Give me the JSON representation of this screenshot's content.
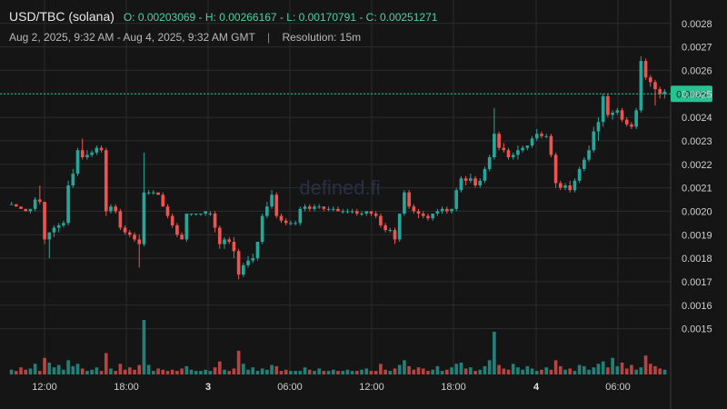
{
  "header": {
    "pair": "USD/TBC (solana)",
    "ohlc": "O: 0.00203069 - H: 0.00266167 - L: 0.00170791 - C: 0.00251271",
    "range": "Aug 2, 2025, 9:32 AM - Aug 4, 2025, 9:32 AM GMT",
    "separator": "|",
    "resolution": "Resolution: 15m"
  },
  "watermark": "defined.fi",
  "colors": {
    "background": "#151515",
    "grid": "#2c2c2c",
    "up": "#26a69a",
    "down": "#ef5350",
    "last_price_bg": "#26c28f"
  },
  "chart_data": {
    "type": "candlestick",
    "ylim": [
      0.00139,
      0.00283
    ],
    "y_ticks": [
      "0.0028",
      "0.0027",
      "0.0026",
      "0.0025",
      "0.0024",
      "0.0023",
      "0.0022",
      "0.0021",
      "0.0020",
      "0.0019",
      "0.0018",
      "0.0017",
      "0.0016",
      "0.0015"
    ],
    "x_ticks": [
      {
        "label": "12:00",
        "bold": false
      },
      {
        "label": "18:00",
        "bold": false
      },
      {
        "label": "3",
        "bold": true
      },
      {
        "label": "06:00",
        "bold": false
      },
      {
        "label": "12:00",
        "bold": false
      },
      {
        "label": "18:00",
        "bold": false
      },
      {
        "label": "4",
        "bold": true
      },
      {
        "label": "06:00",
        "bold": false
      }
    ],
    "last_price": "0.0025",
    "candles": [
      [
        0.00203,
        0.00204,
        0.00203,
        0.00203
      ],
      [
        0.00203,
        0.00203,
        0.00202,
        0.00202
      ],
      [
        0.00202,
        0.00202,
        0.00201,
        0.00201
      ],
      [
        0.00201,
        0.00201,
        0.002,
        0.002
      ],
      [
        0.002,
        0.00201,
        0.00199,
        0.00201
      ],
      [
        0.00201,
        0.00206,
        0.002,
        0.00205
      ],
      [
        0.00205,
        0.00211,
        0.00203,
        0.00204
      ],
      [
        0.00204,
        0.00204,
        0.00186,
        0.00188
      ],
      [
        0.00188,
        0.0019,
        0.0018,
        0.00191
      ],
      [
        0.00191,
        0.00194,
        0.00189,
        0.00193
      ],
      [
        0.00193,
        0.00195,
        0.00191,
        0.00194
      ],
      [
        0.00194,
        0.00196,
        0.00193,
        0.00195
      ],
      [
        0.00195,
        0.00213,
        0.00194,
        0.00211
      ],
      [
        0.00211,
        0.00218,
        0.0021,
        0.00216
      ],
      [
        0.00216,
        0.00227,
        0.00215,
        0.00226
      ],
      [
        0.00226,
        0.00231,
        0.00222,
        0.00223
      ],
      [
        0.00223,
        0.00226,
        0.00222,
        0.00224
      ],
      [
        0.00224,
        0.00226,
        0.00223,
        0.00225
      ],
      [
        0.00225,
        0.00228,
        0.00224,
        0.00227
      ],
      [
        0.00227,
        0.00228,
        0.00225,
        0.00226
      ],
      [
        0.00226,
        0.00227,
        0.00198,
        0.002
      ],
      [
        0.002,
        0.00203,
        0.00199,
        0.00202
      ],
      [
        0.00202,
        0.00203,
        0.00199,
        0.002
      ],
      [
        0.002,
        0.00201,
        0.00192,
        0.00193
      ],
      [
        0.00193,
        0.00194,
        0.0019,
        0.00191
      ],
      [
        0.00191,
        0.00192,
        0.00189,
        0.0019
      ],
      [
        0.0019,
        0.00191,
        0.00187,
        0.00188
      ],
      [
        0.00188,
        0.0019,
        0.00176,
        0.00186
      ],
      [
        0.00186,
        0.00225,
        0.00185,
        0.00208
      ],
      [
        0.00208,
        0.00209,
        0.00207,
        0.00208
      ],
      [
        0.00208,
        0.00209,
        0.00207,
        0.00208
      ],
      [
        0.00208,
        0.00208,
        0.00207,
        0.00207
      ],
      [
        0.00207,
        0.00208,
        0.00202,
        0.00202
      ],
      [
        0.00202,
        0.00203,
        0.00197,
        0.00198
      ],
      [
        0.00198,
        0.00199,
        0.00193,
        0.00194
      ],
      [
        0.00194,
        0.00195,
        0.00189,
        0.0019
      ],
      [
        0.0019,
        0.00191,
        0.00188,
        0.00188
      ],
      [
        0.00188,
        0.00199,
        0.00187,
        0.00199
      ],
      [
        0.00199,
        0.00199,
        0.00198,
        0.00199
      ],
      [
        0.00199,
        0.00199,
        0.00198,
        0.00199
      ],
      [
        0.00199,
        0.00199,
        0.00198,
        0.00199
      ],
      [
        0.00199,
        0.002,
        0.00198,
        0.002
      ],
      [
        0.00199,
        0.002,
        0.00198,
        0.00199
      ],
      [
        0.00199,
        0.002,
        0.00191,
        0.00193
      ],
      [
        0.00193,
        0.00194,
        0.00184,
        0.00186
      ],
      [
        0.00186,
        0.00189,
        0.00184,
        0.00188
      ],
      [
        0.00188,
        0.00189,
        0.00186,
        0.00187
      ],
      [
        0.00187,
        0.00189,
        0.0018,
        0.00183
      ],
      [
        0.00183,
        0.00184,
        0.00171,
        0.00173
      ],
      [
        0.00173,
        0.00178,
        0.00172,
        0.00177
      ],
      [
        0.00177,
        0.00181,
        0.00176,
        0.00179
      ],
      [
        0.00179,
        0.00182,
        0.00178,
        0.0018
      ],
      [
        0.0018,
        0.00187,
        0.00179,
        0.00187
      ],
      [
        0.00187,
        0.00199,
        0.00186,
        0.00198
      ],
      [
        0.00198,
        0.00204,
        0.00197,
        0.00202
      ],
      [
        0.00202,
        0.00209,
        0.00201,
        0.00207
      ],
      [
        0.00207,
        0.00208,
        0.00197,
        0.00198
      ],
      [
        0.00198,
        0.00199,
        0.00195,
        0.00196
      ],
      [
        0.00196,
        0.00197,
        0.00194,
        0.00195
      ],
      [
        0.00195,
        0.00196,
        0.00194,
        0.00195
      ],
      [
        0.00195,
        0.00196,
        0.00194,
        0.00195
      ],
      [
        0.00195,
        0.00202,
        0.00194,
        0.00201
      ],
      [
        0.00201,
        0.00203,
        0.002,
        0.00202
      ],
      [
        0.00202,
        0.00203,
        0.002,
        0.00201
      ],
      [
        0.00201,
        0.00203,
        0.002,
        0.00202
      ],
      [
        0.00202,
        0.00203,
        0.00201,
        0.00202
      ],
      [
        0.00202,
        0.00202,
        0.002,
        0.00201
      ],
      [
        0.00201,
        0.00202,
        0.002,
        0.00201
      ],
      [
        0.00201,
        0.00202,
        0.002,
        0.00201
      ],
      [
        0.00201,
        0.00202,
        0.002,
        0.002
      ],
      [
        0.002,
        0.00201,
        0.00199,
        0.002
      ],
      [
        0.002,
        0.00201,
        0.00199,
        0.002
      ],
      [
        0.002,
        0.00201,
        0.00199,
        0.002
      ],
      [
        0.002,
        0.00201,
        0.00198,
        0.00199
      ],
      [
        0.00199,
        0.002,
        0.00198,
        0.00199
      ],
      [
        0.00199,
        0.002,
        0.00198,
        0.002
      ],
      [
        0.002,
        0.002,
        0.00198,
        0.00199
      ],
      [
        0.00199,
        0.002,
        0.00197,
        0.00198
      ],
      [
        0.00198,
        0.00199,
        0.00193,
        0.00194
      ],
      [
        0.00194,
        0.00195,
        0.00191,
        0.00192
      ],
      [
        0.00192,
        0.00193,
        0.00191,
        0.00192
      ],
      [
        0.00192,
        0.00193,
        0.00186,
        0.00188
      ],
      [
        0.00188,
        0.00199,
        0.00187,
        0.00199
      ],
      [
        0.00199,
        0.00209,
        0.00198,
        0.00208
      ],
      [
        0.00208,
        0.00209,
        0.00201,
        0.00202
      ],
      [
        0.00202,
        0.00203,
        0.00199,
        0.002
      ],
      [
        0.002,
        0.00201,
        0.00197,
        0.00199
      ],
      [
        0.00199,
        0.002,
        0.00197,
        0.00198
      ],
      [
        0.00198,
        0.00199,
        0.00196,
        0.00197
      ],
      [
        0.00197,
        0.00198,
        0.00196,
        0.00199
      ],
      [
        0.00199,
        0.00201,
        0.00198,
        0.002
      ],
      [
        0.002,
        0.00202,
        0.00199,
        0.00201
      ],
      [
        0.00201,
        0.00202,
        0.00199,
        0.002
      ],
      [
        0.002,
        0.00201,
        0.00199,
        0.00201
      ],
      [
        0.00201,
        0.0021,
        0.002,
        0.00209
      ],
      [
        0.00209,
        0.00215,
        0.00208,
        0.00214
      ],
      [
        0.00214,
        0.00215,
        0.00211,
        0.00213
      ],
      [
        0.00213,
        0.00216,
        0.00212,
        0.00214
      ],
      [
        0.00214,
        0.00215,
        0.0021,
        0.00211
      ],
      [
        0.00211,
        0.00214,
        0.0021,
        0.00213
      ],
      [
        0.00213,
        0.00219,
        0.00212,
        0.00218
      ],
      [
        0.00218,
        0.00224,
        0.00217,
        0.00223
      ],
      [
        0.00223,
        0.00244,
        0.00222,
        0.00233
      ],
      [
        0.00233,
        0.00234,
        0.00226,
        0.00227
      ],
      [
        0.00227,
        0.00229,
        0.00225,
        0.00226
      ],
      [
        0.00226,
        0.00227,
        0.00222,
        0.00223
      ],
      [
        0.00223,
        0.00225,
        0.00222,
        0.00224
      ],
      [
        0.00224,
        0.00228,
        0.00222,
        0.00226
      ],
      [
        0.00226,
        0.00228,
        0.00225,
        0.00227
      ],
      [
        0.00227,
        0.00228,
        0.00226,
        0.00228
      ],
      [
        0.00228,
        0.00232,
        0.00227,
        0.00231
      ],
      [
        0.00231,
        0.00235,
        0.0023,
        0.00233
      ],
      [
        0.00233,
        0.00234,
        0.00231,
        0.00232
      ],
      [
        0.00232,
        0.00233,
        0.00231,
        0.00232
      ],
      [
        0.00232,
        0.00233,
        0.00223,
        0.00224
      ],
      [
        0.00224,
        0.00225,
        0.0021,
        0.00212
      ],
      [
        0.00212,
        0.00213,
        0.00209,
        0.0021
      ],
      [
        0.0021,
        0.00212,
        0.00209,
        0.00211
      ],
      [
        0.00211,
        0.00213,
        0.00208,
        0.00209
      ],
      [
        0.00209,
        0.00214,
        0.00208,
        0.00213
      ],
      [
        0.00213,
        0.00219,
        0.00212,
        0.00218
      ],
      [
        0.00218,
        0.00223,
        0.00217,
        0.00222
      ],
      [
        0.00222,
        0.00228,
        0.00221,
        0.00226
      ],
      [
        0.00226,
        0.00236,
        0.00225,
        0.00234
      ],
      [
        0.00234,
        0.0024,
        0.0023,
        0.00238
      ],
      [
        0.00238,
        0.0025,
        0.00236,
        0.00249
      ],
      [
        0.00249,
        0.0025,
        0.0024,
        0.00241
      ],
      [
        0.00241,
        0.00243,
        0.00239,
        0.00242
      ],
      [
        0.00242,
        0.00244,
        0.00241,
        0.00243
      ],
      [
        0.00243,
        0.00244,
        0.00238,
        0.00239
      ],
      [
        0.00239,
        0.0024,
        0.00236,
        0.00237
      ],
      [
        0.00237,
        0.00238,
        0.00235,
        0.00236
      ],
      [
        0.00236,
        0.00244,
        0.00235,
        0.00243
      ],
      [
        0.00243,
        0.00266,
        0.00242,
        0.00264
      ],
      [
        0.00264,
        0.00265,
        0.00256,
        0.00257
      ],
      [
        0.00257,
        0.00258,
        0.00253,
        0.00255
      ],
      [
        0.00255,
        0.00256,
        0.00245,
        0.00252
      ],
      [
        0.00252,
        0.00253,
        0.00248,
        0.0025
      ],
      [
        0.0025,
        0.00252,
        0.00248,
        0.00251
      ]
    ],
    "volumes": [
      4,
      3,
      6,
      4,
      5,
      9,
      3,
      14,
      10,
      6,
      8,
      4,
      12,
      7,
      9,
      5,
      3,
      4,
      6,
      3,
      18,
      5,
      3,
      9,
      4,
      6,
      4,
      8,
      46,
      8,
      3,
      5,
      4,
      3,
      4,
      3,
      5,
      7,
      4,
      3,
      3,
      4,
      3,
      6,
      11,
      4,
      3,
      5,
      20,
      9,
      4,
      6,
      3,
      5,
      4,
      8,
      7,
      3,
      4,
      3,
      3,
      3,
      6,
      4,
      3,
      5,
      3,
      3,
      4,
      3,
      3,
      4,
      3,
      3,
      4,
      5,
      3,
      3,
      9,
      4,
      3,
      5,
      8,
      12,
      7,
      4,
      6,
      5,
      3,
      4,
      7,
      3,
      4,
      6,
      9,
      10,
      5,
      6,
      3,
      4,
      7,
      12,
      36,
      8,
      5,
      4,
      9,
      6,
      4,
      7,
      5,
      3,
      4,
      6,
      4,
      12,
      7,
      4,
      5,
      3,
      8,
      7,
      4,
      6,
      9,
      11,
      6,
      14,
      7,
      10,
      5,
      8,
      4,
      6,
      16,
      9,
      7,
      5,
      4
    ]
  }
}
